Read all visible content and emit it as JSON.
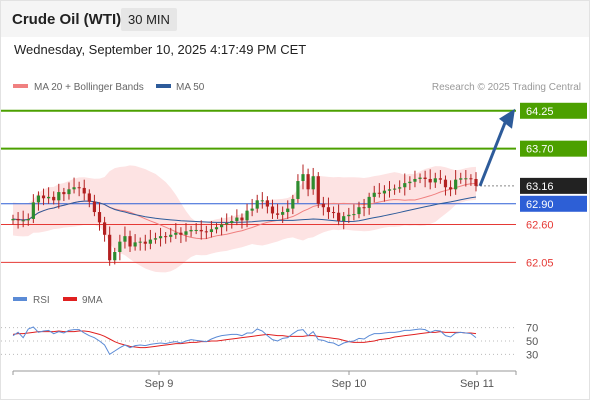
{
  "header": {
    "instrument": "Crude Oil (WTI)",
    "interval": "30 MIN",
    "datetime": "Wednesday, September 10, 2025 4:17:49 PM CET"
  },
  "chart_data": [
    {
      "type": "candlestick",
      "legend": [
        {
          "label": "MA 20 + Bollinger Bands",
          "color": "#f08080"
        },
        {
          "label": "MA 50",
          "color": "#2d5b9a"
        }
      ],
      "credit": "Research © 2025 Trading Central",
      "price_range": [
        61.75,
        64.45
      ],
      "x_labels": [
        "Sep 9",
        "Sep 10",
        "Sep 11"
      ],
      "levels": [
        {
          "value": 64.25,
          "label": "64.25",
          "color": "#4ca000",
          "style": "resistance"
        },
        {
          "value": 63.7,
          "label": "63.70",
          "color": "#4ca000",
          "style": "resistance"
        },
        {
          "value": 63.16,
          "label": "63.16",
          "color": "#222222",
          "style": "last"
        },
        {
          "value": 62.9,
          "label": "62.90",
          "color": "#2d5fd6",
          "style": "pivot"
        },
        {
          "value": 62.6,
          "label": "62.60",
          "color": "#e53935",
          "style": "support"
        },
        {
          "value": 62.05,
          "label": "62.05",
          "color": "#e53935",
          "style": "support"
        }
      ],
      "forecast_arrow": {
        "from": 63.16,
        "to": 64.25,
        "color": "#2d5b9a"
      },
      "closes": [
        62.68,
        62.66,
        62.66,
        62.68,
        62.92,
        63.02,
        62.98,
        63.0,
        62.95,
        63.07,
        63.04,
        63.11,
        63.14,
        63.13,
        63.05,
        62.93,
        62.78,
        62.63,
        62.45,
        62.08,
        62.2,
        62.35,
        62.43,
        62.28,
        62.34,
        62.35,
        62.32,
        62.38,
        62.4,
        62.43,
        62.42,
        62.45,
        62.48,
        62.45,
        62.5,
        62.52,
        62.52,
        62.5,
        62.49,
        62.53,
        62.56,
        62.6,
        62.62,
        62.65,
        62.7,
        62.66,
        62.8,
        62.83,
        62.95,
        62.95,
        62.86,
        62.76,
        62.74,
        62.78,
        62.83,
        62.97,
        63.23,
        63.33,
        63.11,
        63.3,
        62.9,
        62.85,
        62.78,
        62.77,
        62.65,
        62.72,
        62.74,
        62.75,
        62.85,
        62.84,
        63.0,
        63.06,
        63.05,
        63.09,
        63.11,
        63.12,
        63.14,
        63.2,
        63.22,
        63.26,
        63.28,
        63.26,
        63.21,
        63.27,
        63.25,
        63.14,
        63.11,
        63.25,
        63.27,
        63.27,
        63.26,
        63.16
      ],
      "rsi": {
        "label": "RSI",
        "color": "#5b8bd6",
        "ma_label": "9MA",
        "ma_color": "#e02020",
        "ticks": [
          30,
          50,
          70
        ],
        "values": [
          58,
          63,
          55,
          68,
          71,
          63,
          65,
          66,
          61,
          64,
          62,
          66,
          67,
          67,
          62,
          58,
          55,
          50,
          44,
          30,
          35,
          40,
          44,
          40,
          43,
          44,
          43,
          45,
          46,
          47,
          46,
          48,
          49,
          47,
          50,
          52,
          51,
          50,
          49,
          53,
          56,
          58,
          59,
          60,
          60,
          58,
          62,
          62,
          68,
          65,
          58,
          52,
          50,
          54,
          55,
          61,
          66,
          67,
          58,
          64,
          52,
          51,
          48,
          47,
          43,
          47,
          49,
          50,
          54,
          53,
          58,
          61,
          61,
          62,
          63,
          63,
          64,
          66,
          66,
          67,
          68,
          67,
          63,
          66,
          65,
          58,
          56,
          62,
          63,
          62,
          61,
          55
        ],
        "ma_values": [
          60,
          61,
          61,
          62,
          63,
          64,
          64,
          64,
          64,
          65,
          64,
          64,
          64,
          65,
          65,
          64,
          62,
          60,
          57,
          53,
          49,
          46,
          44,
          42,
          41,
          40,
          40,
          41,
          42,
          43,
          44,
          45,
          46,
          46,
          47,
          48,
          48,
          49,
          49,
          50,
          50,
          51,
          52,
          53,
          54,
          55,
          56,
          57,
          58,
          59,
          60,
          59,
          58,
          58,
          57,
          57,
          57,
          57,
          58,
          58,
          57,
          56,
          55,
          54,
          53,
          51,
          49,
          48,
          48,
          48,
          49,
          50,
          52,
          53,
          54,
          56,
          57,
          58,
          59,
          60,
          61,
          62,
          63,
          63,
          64,
          63,
          63,
          63,
          63,
          62,
          62,
          61
        ]
      }
    }
  ]
}
